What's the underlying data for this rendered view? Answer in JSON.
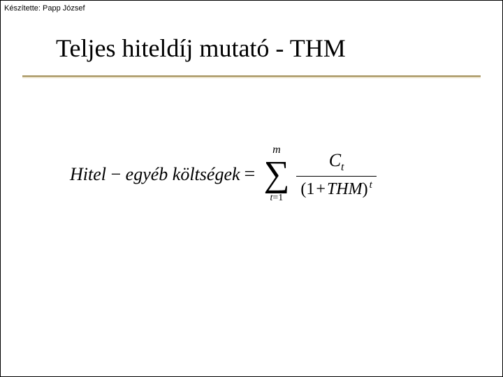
{
  "author": "Készítette: Papp József",
  "title": "Teljes hiteldíj mutató - THM",
  "equation": {
    "lhs_hitel": "Hitel",
    "lhs_minus": " − ",
    "lhs_egyeb": "egyéb",
    "lhs_kolt": " költségek",
    "equals": "=",
    "sum_top": "m",
    "sum_bot_var": "t",
    "sum_bot_eq": "=",
    "sum_bot_val": "1",
    "num_C": "C",
    "num_t": "t",
    "den_open": "(",
    "den_one": "1",
    "den_plus": "+",
    "den_thm": "THM",
    "den_close": ")",
    "den_exp": "t"
  },
  "style": {
    "page_bg": "#ffffff",
    "text_color": "#000000",
    "underline_dark": "#a38f5a",
    "underline_light": "#e8e0c8",
    "title_fontsize": 36,
    "author_fontsize": 11,
    "equation_fontsize": 26
  }
}
